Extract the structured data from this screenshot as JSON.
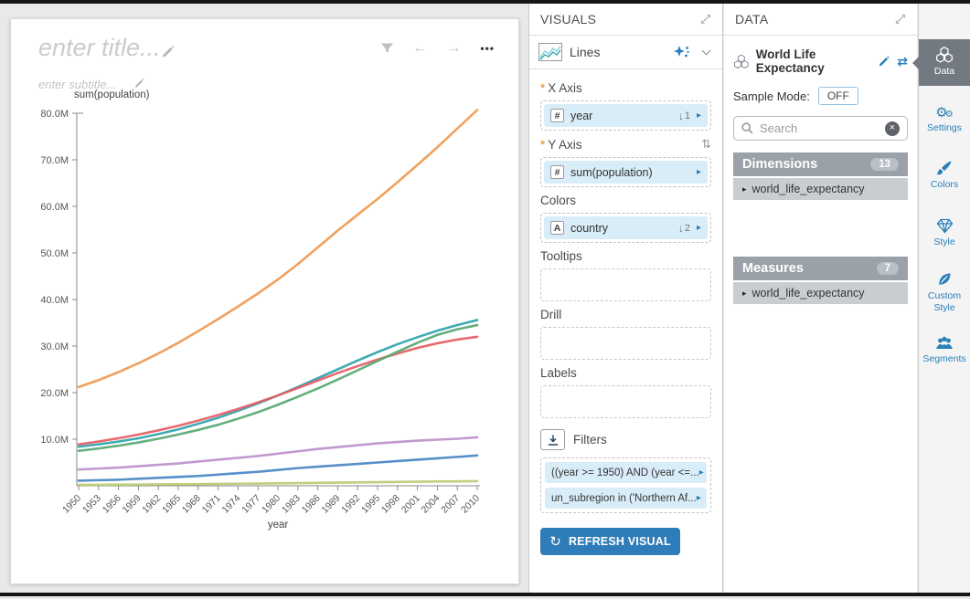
{
  "icons": {
    "required_marker": "*",
    "back_arrow": "←",
    "forward_arrow": "→",
    "more": "•••",
    "swap": "⇅",
    "shuffle": "⇄",
    "sort_arrow": "↓",
    "caret_right": "▸",
    "refresh": "↻",
    "gear": "⚙",
    "clear": "×",
    "item_caret": "▸"
  },
  "canvas": {
    "title_placeholder": "enter title...",
    "subtitle_placeholder": "enter subtitle..."
  },
  "chart_data": {
    "type": "line",
    "title": "",
    "ylabel": "sum(population)",
    "xlabel": "year",
    "unit": "millions",
    "color_by": "country",
    "legend": false,
    "grid": false,
    "ylim": [
      0,
      80
    ],
    "y_ticks": [
      10,
      20,
      30,
      40,
      50,
      60,
      70,
      80
    ],
    "y_tick_labels": [
      "10.0M",
      "20.0M",
      "30.0M",
      "40.0M",
      "50.0M",
      "60.0M",
      "70.0M",
      "80.0M"
    ],
    "x": [
      1950,
      1953,
      1956,
      1959,
      1962,
      1965,
      1968,
      1971,
      1974,
      1977,
      1980,
      1983,
      1986,
      1989,
      1992,
      1995,
      1998,
      2001,
      2004,
      2007,
      2010
    ],
    "series": [
      {
        "name": "series-orange",
        "color": "#ef9950",
        "values": [
          21.2,
          22.7,
          24.4,
          26.3,
          28.4,
          30.7,
          33.2,
          35.8,
          38.5,
          41.3,
          44.3,
          47.6,
          51.2,
          54.8,
          58.2,
          61.6,
          65.2,
          68.9,
          72.7,
          76.7,
          80.7
        ]
      },
      {
        "name": "series-teal",
        "color": "#2fa4ae",
        "values": [
          8.4,
          8.9,
          9.5,
          10.2,
          11.1,
          12.1,
          13.3,
          14.6,
          16.1,
          17.7,
          19.4,
          21.2,
          23.1,
          25.0,
          26.9,
          28.7,
          30.4,
          31.9,
          33.3,
          34.5,
          35.6
        ]
      },
      {
        "name": "series-red",
        "color": "#e65c64",
        "values": [
          8.9,
          9.5,
          10.2,
          11.0,
          11.9,
          12.9,
          14.0,
          15.2,
          16.5,
          17.9,
          19.4,
          21.0,
          22.6,
          24.2,
          25.7,
          27.1,
          28.4,
          29.6,
          30.6,
          31.4,
          32.0
        ]
      },
      {
        "name": "series-green",
        "color": "#57a873",
        "values": [
          7.5,
          8.0,
          8.6,
          9.3,
          10.1,
          11.0,
          12.0,
          13.1,
          14.4,
          15.8,
          17.4,
          19.1,
          20.9,
          22.8,
          24.8,
          26.8,
          28.8,
          30.7,
          32.4,
          33.6,
          34.5
        ]
      },
      {
        "name": "series-purple",
        "color": "#bd8fcc",
        "values": [
          3.5,
          3.7,
          3.9,
          4.2,
          4.5,
          4.8,
          5.2,
          5.6,
          6.0,
          6.4,
          6.9,
          7.4,
          7.9,
          8.3,
          8.7,
          9.1,
          9.4,
          9.7,
          9.9,
          10.1,
          10.4
        ]
      },
      {
        "name": "series-blue",
        "color": "#4a86c5",
        "values": [
          1.1,
          1.2,
          1.3,
          1.5,
          1.7,
          1.9,
          2.1,
          2.4,
          2.7,
          3.0,
          3.4,
          3.8,
          4.1,
          4.4,
          4.7,
          5.0,
          5.3,
          5.6,
          5.9,
          6.2,
          6.5
        ]
      },
      {
        "name": "series-yellowgreen",
        "color": "#b8cc72",
        "values": [
          0.2,
          0.22,
          0.25,
          0.27,
          0.3,
          0.33,
          0.36,
          0.4,
          0.44,
          0.48,
          0.52,
          0.57,
          0.62,
          0.67,
          0.72,
          0.77,
          0.82,
          0.87,
          0.91,
          0.95,
          1.0
        ]
      }
    ]
  },
  "visuals_panel": {
    "title": "VISUALS",
    "chart_type_label": "Lines",
    "x_axis": {
      "label": "X Axis",
      "field": {
        "type_badge": "#",
        "name": "year",
        "sort_order": "1"
      }
    },
    "y_axis": {
      "label": "Y Axis",
      "field": {
        "type_badge": "#",
        "name": "sum(population)"
      }
    },
    "colors": {
      "label": "Colors",
      "field": {
        "type_badge": "A",
        "name": "country",
        "sort_order": "2"
      }
    },
    "tooltips_label": "Tooltips",
    "drill_label": "Drill",
    "labels_label": "Labels",
    "filters": {
      "label": "Filters",
      "items": [
        "((year >= 1950) AND (year <=...",
        "un_subregion in ('Northern Af..."
      ]
    },
    "refresh_button_label": "REFRESH VISUAL"
  },
  "data_panel": {
    "title": "DATA",
    "dataset_name": "World Life Expectancy",
    "sample_mode_label": "Sample Mode:",
    "sample_mode_value": "OFF",
    "search_placeholder": "Search",
    "dimensions": {
      "label": "Dimensions",
      "count": "13",
      "items": [
        "world_life_expectancy"
      ]
    },
    "measures": {
      "label": "Measures",
      "count": "7",
      "items": [
        "world_life_expectancy"
      ]
    }
  },
  "sidebar": {
    "tabs": [
      {
        "label": "Data",
        "active": true
      },
      {
        "label": "Settings",
        "active": false
      },
      {
        "label": "Colors",
        "active": false
      },
      {
        "label": "Style",
        "active": false
      },
      {
        "label": "Custom Style",
        "active": false
      },
      {
        "label": "Segments",
        "active": false
      }
    ]
  }
}
